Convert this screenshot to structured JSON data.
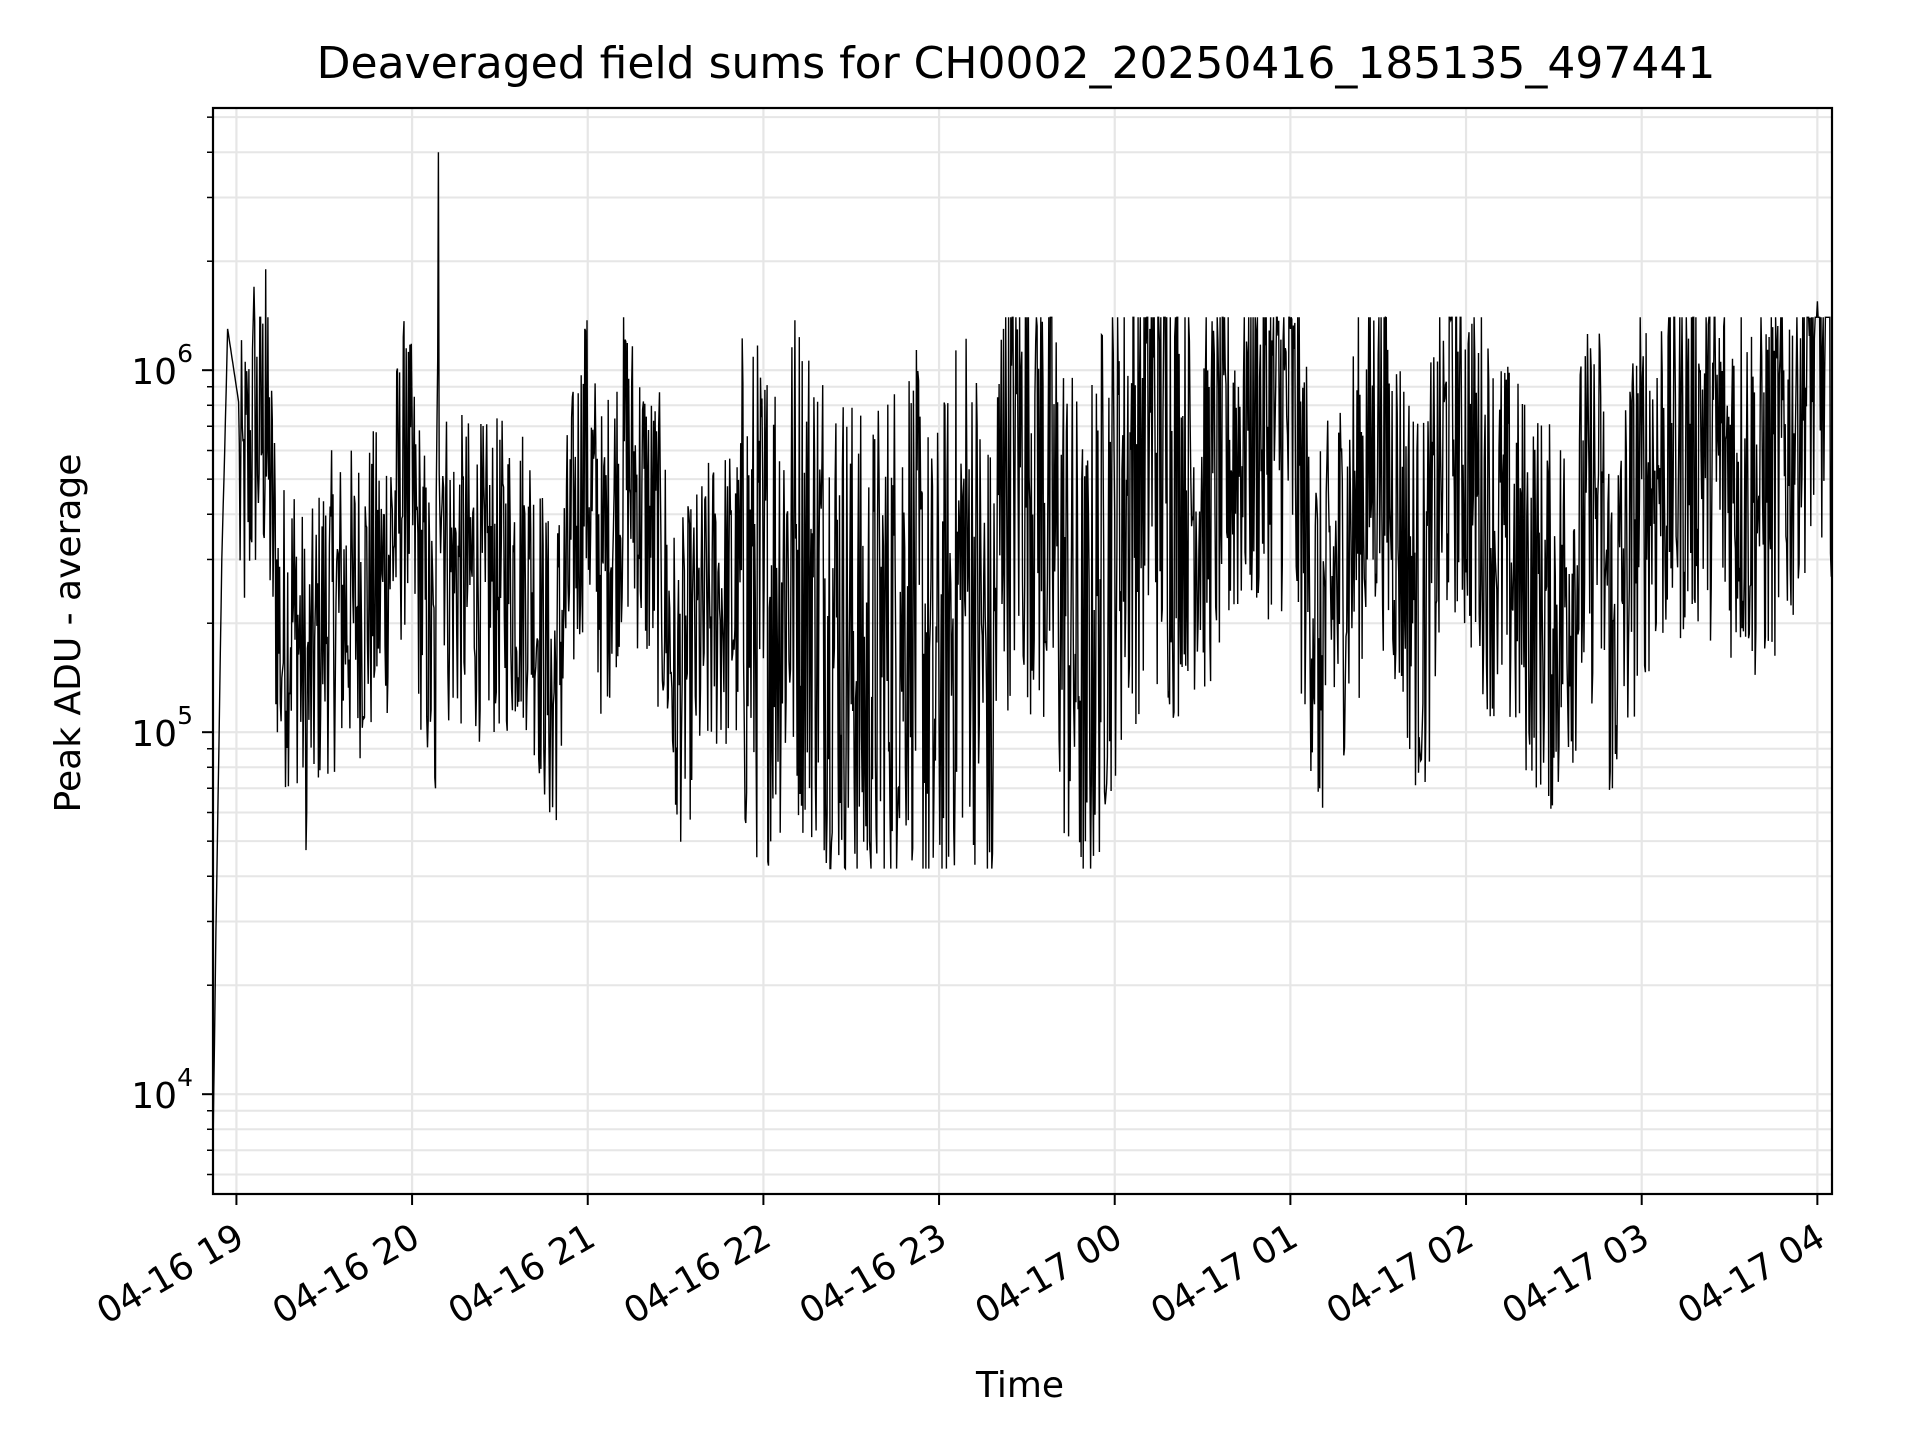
{
  "chart_data": {
    "type": "line",
    "title": "Deaveraged field sums for CH0002_20250416_185135_497441",
    "xlabel": "Time",
    "ylabel": "Peak ADU - average",
    "y_scale": "log",
    "ylim": [
      5300,
      5300000
    ],
    "xlim": [
      "2025-04-16 18:52",
      "2025-04-17 04:05"
    ],
    "grid": true,
    "line_color": "#000000",
    "grid_color": "#e6e6e6",
    "x_ticks": [
      {
        "t": "2025-04-16 19:00",
        "label": "04-16 19"
      },
      {
        "t": "2025-04-16 20:00",
        "label": "04-16 20"
      },
      {
        "t": "2025-04-16 21:00",
        "label": "04-16 21"
      },
      {
        "t": "2025-04-16 22:00",
        "label": "04-16 22"
      },
      {
        "t": "2025-04-16 23:00",
        "label": "04-16 23"
      },
      {
        "t": "2025-04-17 00:00",
        "label": "04-17 00"
      },
      {
        "t": "2025-04-17 01:00",
        "label": "04-17 01"
      },
      {
        "t": "2025-04-17 02:00",
        "label": "04-17 02"
      },
      {
        "t": "2025-04-17 03:00",
        "label": "04-17 03"
      },
      {
        "t": "2025-04-17 04:00",
        "label": "04-17 04"
      }
    ],
    "y_ticks": [
      {
        "value": 10000,
        "base": "10",
        "exp": "4"
      },
      {
        "value": 100000,
        "base": "10",
        "exp": "5"
      },
      {
        "value": 1000000,
        "base": "10",
        "exp": "6"
      }
    ],
    "series": [
      {
        "points": [
          [
            "2025-04-16 18:52",
            7000
          ],
          [
            "2025-04-16 18:53",
            28000
          ],
          [
            "2025-04-16 18:54",
            90000
          ],
          [
            "2025-04-16 18:55",
            300000
          ],
          [
            "2025-04-16 18:56",
            600000
          ],
          [
            "2025-04-16 18:57",
            1300000
          ],
          [
            "2025-04-16 19:02",
            700000
          ],
          [
            "2025-04-16 19:06",
            1700000
          ],
          [
            "2025-04-16 19:10",
            1900000
          ],
          [
            "2025-04-16 19:15",
            120000
          ],
          [
            "2025-04-16 19:20",
            180000
          ],
          [
            "2025-04-16 19:24",
            60000
          ],
          [
            "2025-04-16 19:30",
            170000
          ],
          [
            "2025-04-16 19:40",
            200000
          ],
          [
            "2025-04-16 19:50",
            260000
          ],
          [
            "2025-04-16 19:58",
            1150000
          ],
          [
            "2025-04-16 20:08",
            70000
          ],
          [
            "2025-04-16 20:09",
            4000000
          ],
          [
            "2025-04-16 20:12",
            300000
          ],
          [
            "2025-04-16 20:25",
            260000
          ],
          [
            "2025-04-16 20:40",
            300000
          ],
          [
            "2025-04-16 20:48",
            62000
          ],
          [
            "2025-04-16 20:59",
            1300000
          ],
          [
            "2025-04-16 21:05",
            300000
          ],
          [
            "2025-04-16 21:13",
            1200000
          ],
          [
            "2025-04-16 21:25",
            350000
          ],
          [
            "2025-04-16 21:30",
            63000
          ],
          [
            "2025-04-16 21:45",
            220000
          ],
          [
            "2025-04-16 22:00",
            160000
          ],
          [
            "2025-04-16 22:10",
            300000
          ],
          [
            "2025-04-16 22:24",
            150000
          ],
          [
            "2025-04-16 22:35",
            55000
          ],
          [
            "2025-04-16 22:50",
            200000
          ],
          [
            "2025-04-16 22:58",
            45000
          ],
          [
            "2025-04-16 23:10",
            300000
          ],
          [
            "2025-04-16 23:18",
            42000
          ],
          [
            "2025-04-16 23:22",
            1300000
          ],
          [
            "2025-04-16 23:33",
            1200000
          ],
          [
            "2025-04-16 23:50",
            50000
          ],
          [
            "2025-04-17 00:00",
            400000
          ],
          [
            "2025-04-17 00:12",
            1300000
          ],
          [
            "2025-04-17 00:30",
            400000
          ],
          [
            "2025-04-17 00:45",
            1200000
          ],
          [
            "2025-04-17 01:00",
            1300000
          ],
          [
            "2025-04-17 01:10",
            70000
          ],
          [
            "2025-04-17 01:30",
            1100000
          ],
          [
            "2025-04-17 01:45",
            100000
          ],
          [
            "2025-04-17 01:55",
            1400000
          ],
          [
            "2025-04-17 02:10",
            300000
          ],
          [
            "2025-04-17 02:30",
            85000
          ],
          [
            "2025-04-17 02:45",
            450000
          ],
          [
            "2025-04-17 02:50",
            70000
          ],
          [
            "2025-04-17 03:00",
            500000
          ],
          [
            "2025-04-17 03:20",
            1000000
          ],
          [
            "2025-04-17 03:40",
            450000
          ],
          [
            "2025-04-17 04:00",
            1550000
          ],
          [
            "2025-04-17 04:05",
            1100000
          ],
          [
            "2025-04-17 04:05",
            40000
          ]
        ]
      }
    ]
  }
}
